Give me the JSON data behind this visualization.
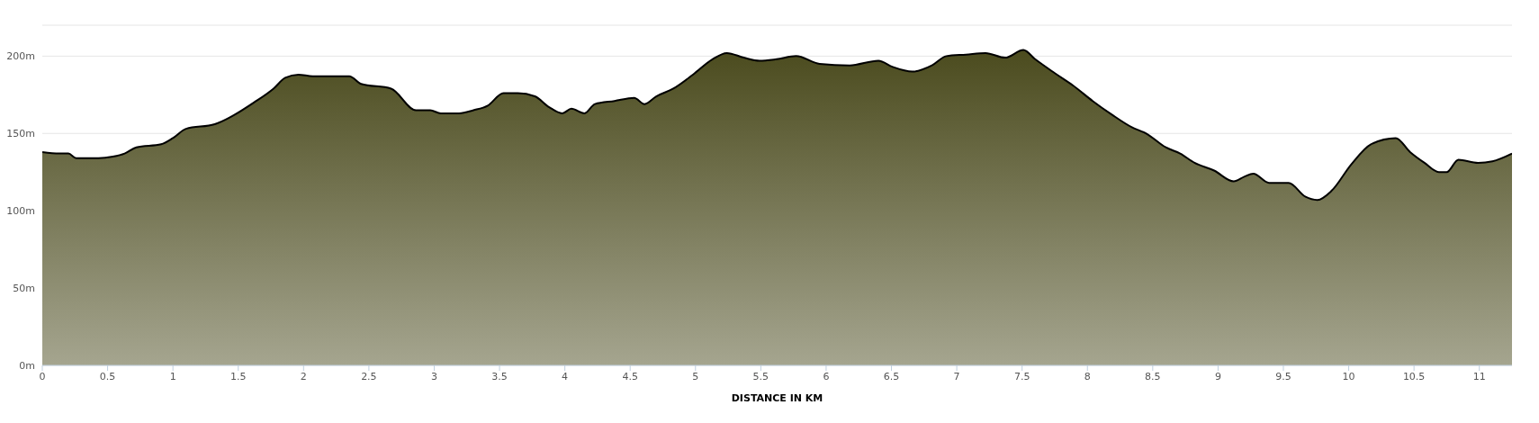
{
  "chart_data": {
    "type": "area",
    "xlabel": "DISTANCE IN KM",
    "xlim": [
      0,
      11.25
    ],
    "xticks": [
      0,
      0.5,
      1,
      1.5,
      2,
      2.5,
      3,
      3.5,
      4,
      4.5,
      5,
      5.5,
      6,
      6.5,
      7,
      7.5,
      8,
      8.5,
      9,
      9.5,
      10,
      10.5,
      11
    ],
    "ylim": [
      0,
      220
    ],
    "yticks": [
      {
        "value": 0,
        "label": "0m"
      },
      {
        "value": 50,
        "label": "50m"
      },
      {
        "value": 100,
        "label": "100m"
      },
      {
        "value": 150,
        "label": "150m"
      },
      {
        "value": 200,
        "label": "200m"
      }
    ],
    "grid": "y",
    "x": [
      0,
      0.13,
      0.2,
      0.26,
      0.43,
      0.54,
      0.63,
      0.72,
      0.91,
      1.0,
      1.1,
      1.32,
      1.47,
      1.62,
      1.77,
      1.86,
      1.96,
      2.07,
      2.35,
      2.44,
      2.67,
      2.86,
      2.97,
      3.05,
      3.19,
      3.3,
      3.41,
      3.53,
      3.64,
      3.77,
      3.88,
      3.98,
      4.05,
      4.15,
      4.23,
      4.38,
      4.53,
      4.61,
      4.7,
      4.83,
      4.98,
      5.13,
      5.24,
      5.37,
      5.49,
      5.62,
      5.77,
      5.95,
      6.18,
      6.4,
      6.51,
      6.66,
      6.81,
      6.92,
      7.07,
      7.22,
      7.37,
      7.51,
      7.6,
      7.75,
      7.89,
      8.04,
      8.19,
      8.34,
      8.45,
      8.6,
      8.71,
      8.82,
      8.97,
      9.12,
      9.2,
      9.27,
      9.39,
      9.54,
      9.67,
      9.76,
      9.87,
      10.02,
      10.17,
      10.36,
      10.47,
      10.58,
      10.69,
      10.75,
      10.84,
      10.99,
      11.1,
      11.25
    ],
    "series": [
      {
        "color": "#4b4b1e",
        "values": [
          138,
          137,
          137,
          134,
          134,
          135,
          137,
          141,
          143,
          147,
          153,
          156,
          162,
          170,
          179,
          186,
          188,
          187,
          187,
          182,
          179,
          165,
          165,
          163,
          163,
          165,
          168,
          176,
          176,
          174,
          167,
          163,
          166,
          163,
          169,
          171,
          173,
          169,
          174,
          179,
          188,
          198,
          202,
          199,
          197,
          198,
          200,
          195,
          194,
          197,
          193,
          190,
          194,
          200,
          201,
          202,
          199,
          204,
          198,
          189,
          181,
          171,
          162,
          154,
          150,
          141,
          137,
          131,
          126,
          119,
          122,
          124,
          118,
          118,
          109,
          107,
          113,
          130,
          143,
          147,
          138,
          131,
          125,
          125,
          133,
          131,
          132,
          137
        ]
      }
    ]
  }
}
